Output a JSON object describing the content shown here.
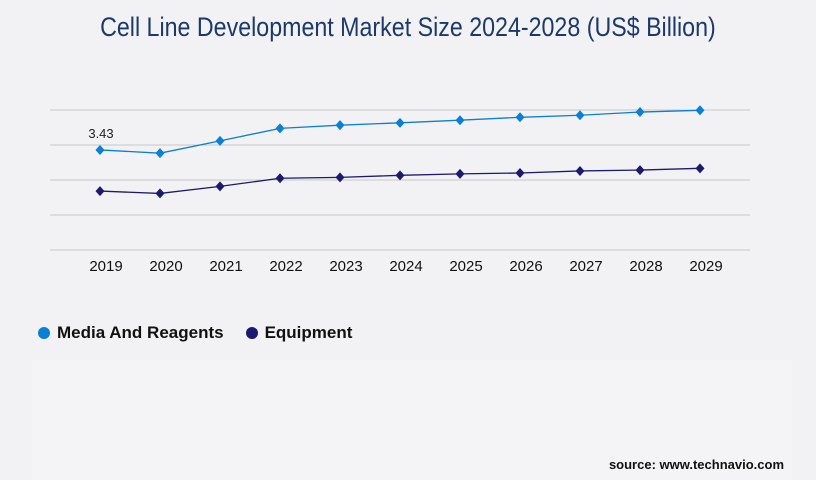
{
  "chart_data": {
    "type": "line",
    "title": "Cell Line Development Market Size 2024-2028 (US$ Billion)",
    "xlabel": "",
    "ylabel": "",
    "categories": [
      "2019",
      "2020",
      "2021",
      "2022",
      "2023",
      "2024",
      "2025",
      "2026",
      "2027",
      "2028",
      "2029"
    ],
    "ylim": [
      0,
      4.8
    ],
    "grid": true,
    "legend_position": "bottom-left",
    "series": [
      {
        "name": "Media And Reagents",
        "color": "#0a7fd6",
        "values": [
          3.43,
          3.32,
          3.74,
          4.17,
          4.28,
          4.36,
          4.45,
          4.55,
          4.62,
          4.73,
          4.79
        ]
      },
      {
        "name": "Equipment",
        "color": "#1a1a6e",
        "values": [
          2.02,
          1.94,
          2.18,
          2.46,
          2.49,
          2.56,
          2.61,
          2.64,
          2.71,
          2.74,
          2.8
        ]
      }
    ],
    "annotations": [
      {
        "series": 0,
        "index": 0,
        "text": "3.43"
      }
    ]
  },
  "source": "source: www.technavio.com"
}
